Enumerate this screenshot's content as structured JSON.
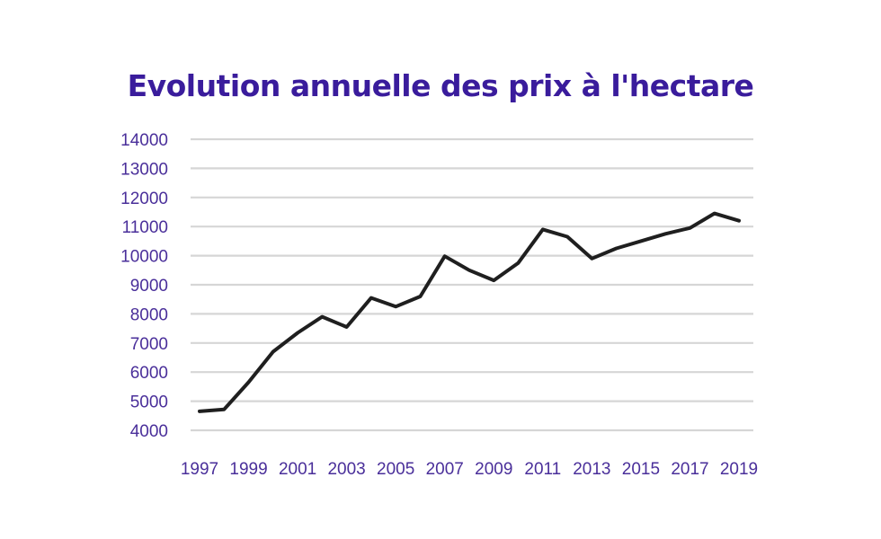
{
  "chart_data": {
    "type": "line",
    "title": "Evolution annuelle des prix à l'hectare",
    "xlabel": "",
    "ylabel": "",
    "ylim": [
      4000,
      14000
    ],
    "yticks": [
      "14000",
      "13000",
      "12000",
      "11000",
      "10000",
      "9000",
      "8000",
      "7000",
      "6000",
      "5000",
      "4000"
    ],
    "xticks": [
      "1997",
      "1999",
      "2001",
      "2003",
      "2005",
      "2007",
      "2009",
      "2011",
      "2013",
      "2015",
      "2017",
      "2019"
    ],
    "grid": true,
    "legend": "none",
    "colors": {
      "title": "#3a1c9c",
      "ticks": "#4a2f9a",
      "line": "#1f1f1f",
      "grid": "#d6d6d6"
    },
    "series": [
      {
        "x": [
          1997,
          1998,
          1999,
          2000,
          2001,
          2002,
          2003,
          2004,
          2005,
          2006,
          2007,
          2008,
          2009,
          2010,
          2011,
          2012,
          2013,
          2014,
          2015,
          2016,
          2017,
          2018,
          2019
        ],
        "values": [
          4650,
          4720,
          5650,
          6700,
          7350,
          7900,
          7550,
          8550,
          8250,
          8600,
          9980,
          9500,
          9150,
          9750,
          10900,
          10650,
          9900,
          10250,
          10500,
          10750,
          10950,
          11450,
          11200
        ]
      }
    ]
  }
}
